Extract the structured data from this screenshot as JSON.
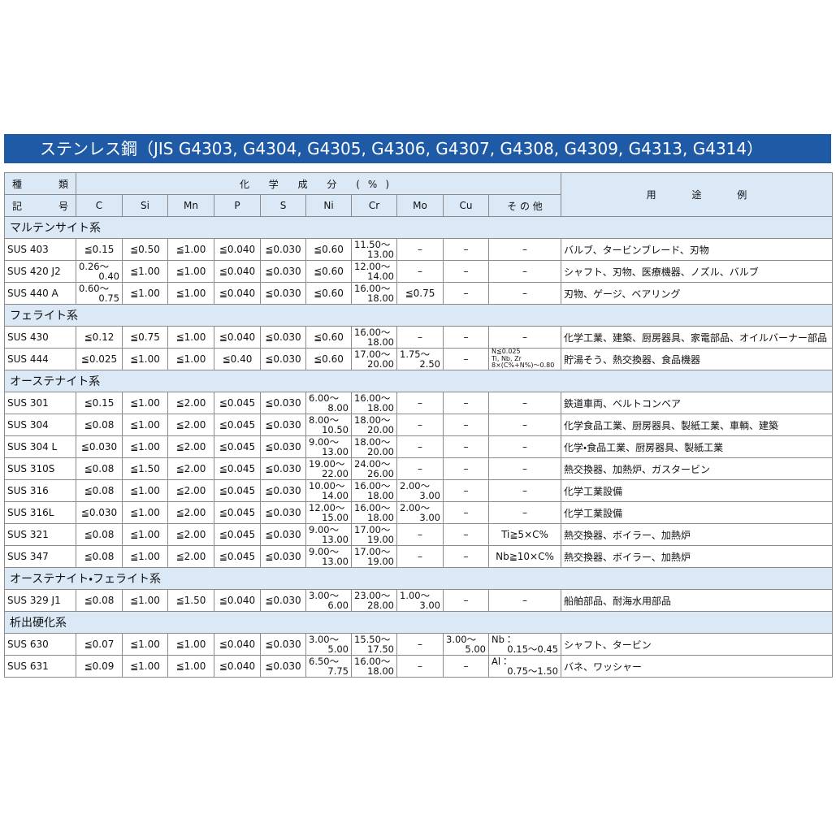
{
  "title": "ステンレス鋼（JIS G4303, G4304, G4305, G4306, G4307, G4308, G4309, G4313, G4314）",
  "table": {
    "header": {
      "id_top": "種 類",
      "id_bottom": "記 号",
      "composition": "化 学 成 分 (%)",
      "columns": [
        "C",
        "Si",
        "Mn",
        "P",
        "S",
        "Ni",
        "Cr",
        "Mo",
        "Cu",
        "そ の 他"
      ],
      "usage": "用 途 例"
    },
    "groups": [
      {
        "name": "マルテンサイト系",
        "rows": [
          {
            "grade": "SUS 403",
            "cells": [
              "≦0.15",
              "≦0.50",
              "≦1.00",
              "≦0.040",
              "≦0.030",
              "≦0.60",
              [
                "11.50〜",
                "13.00"
              ],
              "–",
              "–",
              "–"
            ],
            "usage": "バルブ、タービンブレード、刃物"
          },
          {
            "grade": "SUS 420 J2",
            "cells": [
              [
                "0.26〜",
                "0.40"
              ],
              "≦1.00",
              "≦1.00",
              "≦0.040",
              "≦0.030",
              "≦0.60",
              [
                "12.00〜",
                "14.00"
              ],
              "–",
              "–",
              "–"
            ],
            "usage": "シャフト、刃物、医療機器、ノズル、バルブ"
          },
          {
            "grade": "SUS 440 A",
            "cells": [
              [
                "0.60〜",
                "0.75"
              ],
              "≦1.00",
              "≦1.00",
              "≦0.040",
              "≦0.030",
              "≦0.60",
              [
                "16.00〜",
                "18.00"
              ],
              "≦0.75",
              "–",
              "–"
            ],
            "usage": "刃物、ゲージ、ベアリング"
          }
        ]
      },
      {
        "name": "フェライト系",
        "rows": [
          {
            "grade": "SUS 430",
            "cells": [
              "≦0.12",
              "≦0.75",
              "≦1.00",
              "≦0.040",
              "≦0.030",
              "≦0.60",
              [
                "16.00〜",
                "18.00"
              ],
              "–",
              "–",
              "–"
            ],
            "usage": "化学工業、建築、厨房器具、家電部品、オイルバーナー部品"
          },
          {
            "grade": "SUS 444",
            "cells": [
              "≦0.025",
              "≦1.00",
              "≦1.00",
              "≦0.40",
              "≦0.030",
              "≦0.60",
              [
                "17.00〜",
                "20.00"
              ],
              [
                "1.75〜",
                "2.50"
              ],
              "–",
              [
                "N≦0.025",
                "Ti, Nb, Zr",
                "8×(C%+N%)〜0.80"
              ]
            ],
            "usage": "貯湯そう、熱交換器、食品機器"
          }
        ]
      },
      {
        "name": "オーステナイト系",
        "rows": [
          {
            "grade": "SUS 301",
            "cells": [
              "≦0.15",
              "≦1.00",
              "≦2.00",
              "≦0.045",
              "≦0.030",
              [
                "6.00〜",
                "8.00"
              ],
              [
                "16.00〜",
                "18.00"
              ],
              "–",
              "–",
              "–"
            ],
            "usage": "鉄道車両、ベルトコンベア"
          },
          {
            "grade": "SUS 304",
            "cells": [
              "≦0.08",
              "≦1.00",
              "≦2.00",
              "≦0.045",
              "≦0.030",
              [
                "8.00〜",
                "10.50"
              ],
              [
                "18.00〜",
                "20.00"
              ],
              "–",
              "–",
              "–"
            ],
            "usage": "化学食品工業、厨房器具、製紙工業、車輌、建築"
          },
          {
            "grade": "SUS 304 L",
            "cells": [
              "≦0.030",
              "≦1.00",
              "≦2.00",
              "≦0.045",
              "≦0.030",
              [
                "9.00〜",
                "13.00"
              ],
              [
                "18.00〜",
                "20.00"
              ],
              "–",
              "–",
              "–"
            ],
            "usage": "化学・食品工業、厨房器具、製紙工業"
          },
          {
            "grade": "SUS 310S",
            "cells": [
              "≦0.08",
              "≦1.50",
              "≦2.00",
              "≦0.045",
              "≦0.030",
              [
                "19.00〜",
                "22.00"
              ],
              [
                "24.00〜",
                "26.00"
              ],
              "–",
              "–",
              "–"
            ],
            "usage": "熱交換器、加熱炉、ガスタービン"
          },
          {
            "grade": "SUS 316",
            "cells": [
              "≦0.08",
              "≦1.00",
              "≦2.00",
              "≦0.045",
              "≦0.030",
              [
                "10.00〜",
                "14.00"
              ],
              [
                "16.00〜",
                "18.00"
              ],
              [
                "2.00〜",
                "3.00"
              ],
              "–",
              "–"
            ],
            "usage": "化学工業設備"
          },
          {
            "grade": "SUS 316L",
            "cells": [
              "≦0.030",
              "≦1.00",
              "≦2.00",
              "≦0.045",
              "≦0.030",
              [
                "12.00〜",
                "15.00"
              ],
              [
                "16.00〜",
                "18.00"
              ],
              [
                "2.00〜",
                "3.00"
              ],
              "–",
              "–"
            ],
            "usage": "化学工業設備"
          },
          {
            "grade": "SUS 321",
            "cells": [
              "≦0.08",
              "≦1.00",
              "≦2.00",
              "≦0.045",
              "≦0.030",
              [
                "9.00〜",
                "13.00"
              ],
              [
                "17.00〜",
                "19.00"
              ],
              "–",
              "–",
              "Ti≧5×C%"
            ],
            "usage": "熱交換器、ボイラー、加熱炉"
          },
          {
            "grade": "SUS 347",
            "cells": [
              "≦0.08",
              "≦1.00",
              "≦2.00",
              "≦0.045",
              "≦0.030",
              [
                "9.00〜",
                "13.00"
              ],
              [
                "17.00〜",
                "19.00"
              ],
              "–",
              "–",
              "Nb≧10×C%"
            ],
            "usage": "熱交換器、ボイラー、加熱炉"
          }
        ]
      },
      {
        "name": "オーステナイト・フェライト系",
        "rows": [
          {
            "grade": "SUS 329 J1",
            "cells": [
              "≦0.08",
              "≦1.00",
              "≦1.50",
              "≦0.040",
              "≦0.030",
              [
                "3.00〜",
                "6.00"
              ],
              [
                "23.00〜",
                "28.00"
              ],
              [
                "1.00〜",
                "3.00"
              ],
              "–",
              "–"
            ],
            "usage": "船舶部品、耐海水用部品"
          }
        ]
      },
      {
        "name": "析出硬化系",
        "rows": [
          {
            "grade": "SUS 630",
            "cells": [
              "≦0.07",
              "≦1.00",
              "≦1.00",
              "≦0.040",
              "≦0.030",
              [
                "3.00〜",
                "5.00"
              ],
              [
                "15.50〜",
                "17.50"
              ],
              "–",
              [
                "3.00〜",
                "5.00"
              ],
              [
                "Nb：",
                "0.15〜0.45"
              ]
            ],
            "usage": "シャフト、タービン"
          },
          {
            "grade": "SUS 631",
            "cells": [
              "≦0.09",
              "≦1.00",
              "≦1.00",
              "≦0.040",
              "≦0.030",
              [
                "6.50〜",
                "7.75"
              ],
              [
                "16.00〜",
                "18.00"
              ],
              "–",
              "–",
              [
                "Al：",
                "0.75〜1.50"
              ]
            ],
            "usage": "バネ、ワッシャー"
          }
        ]
      }
    ]
  }
}
